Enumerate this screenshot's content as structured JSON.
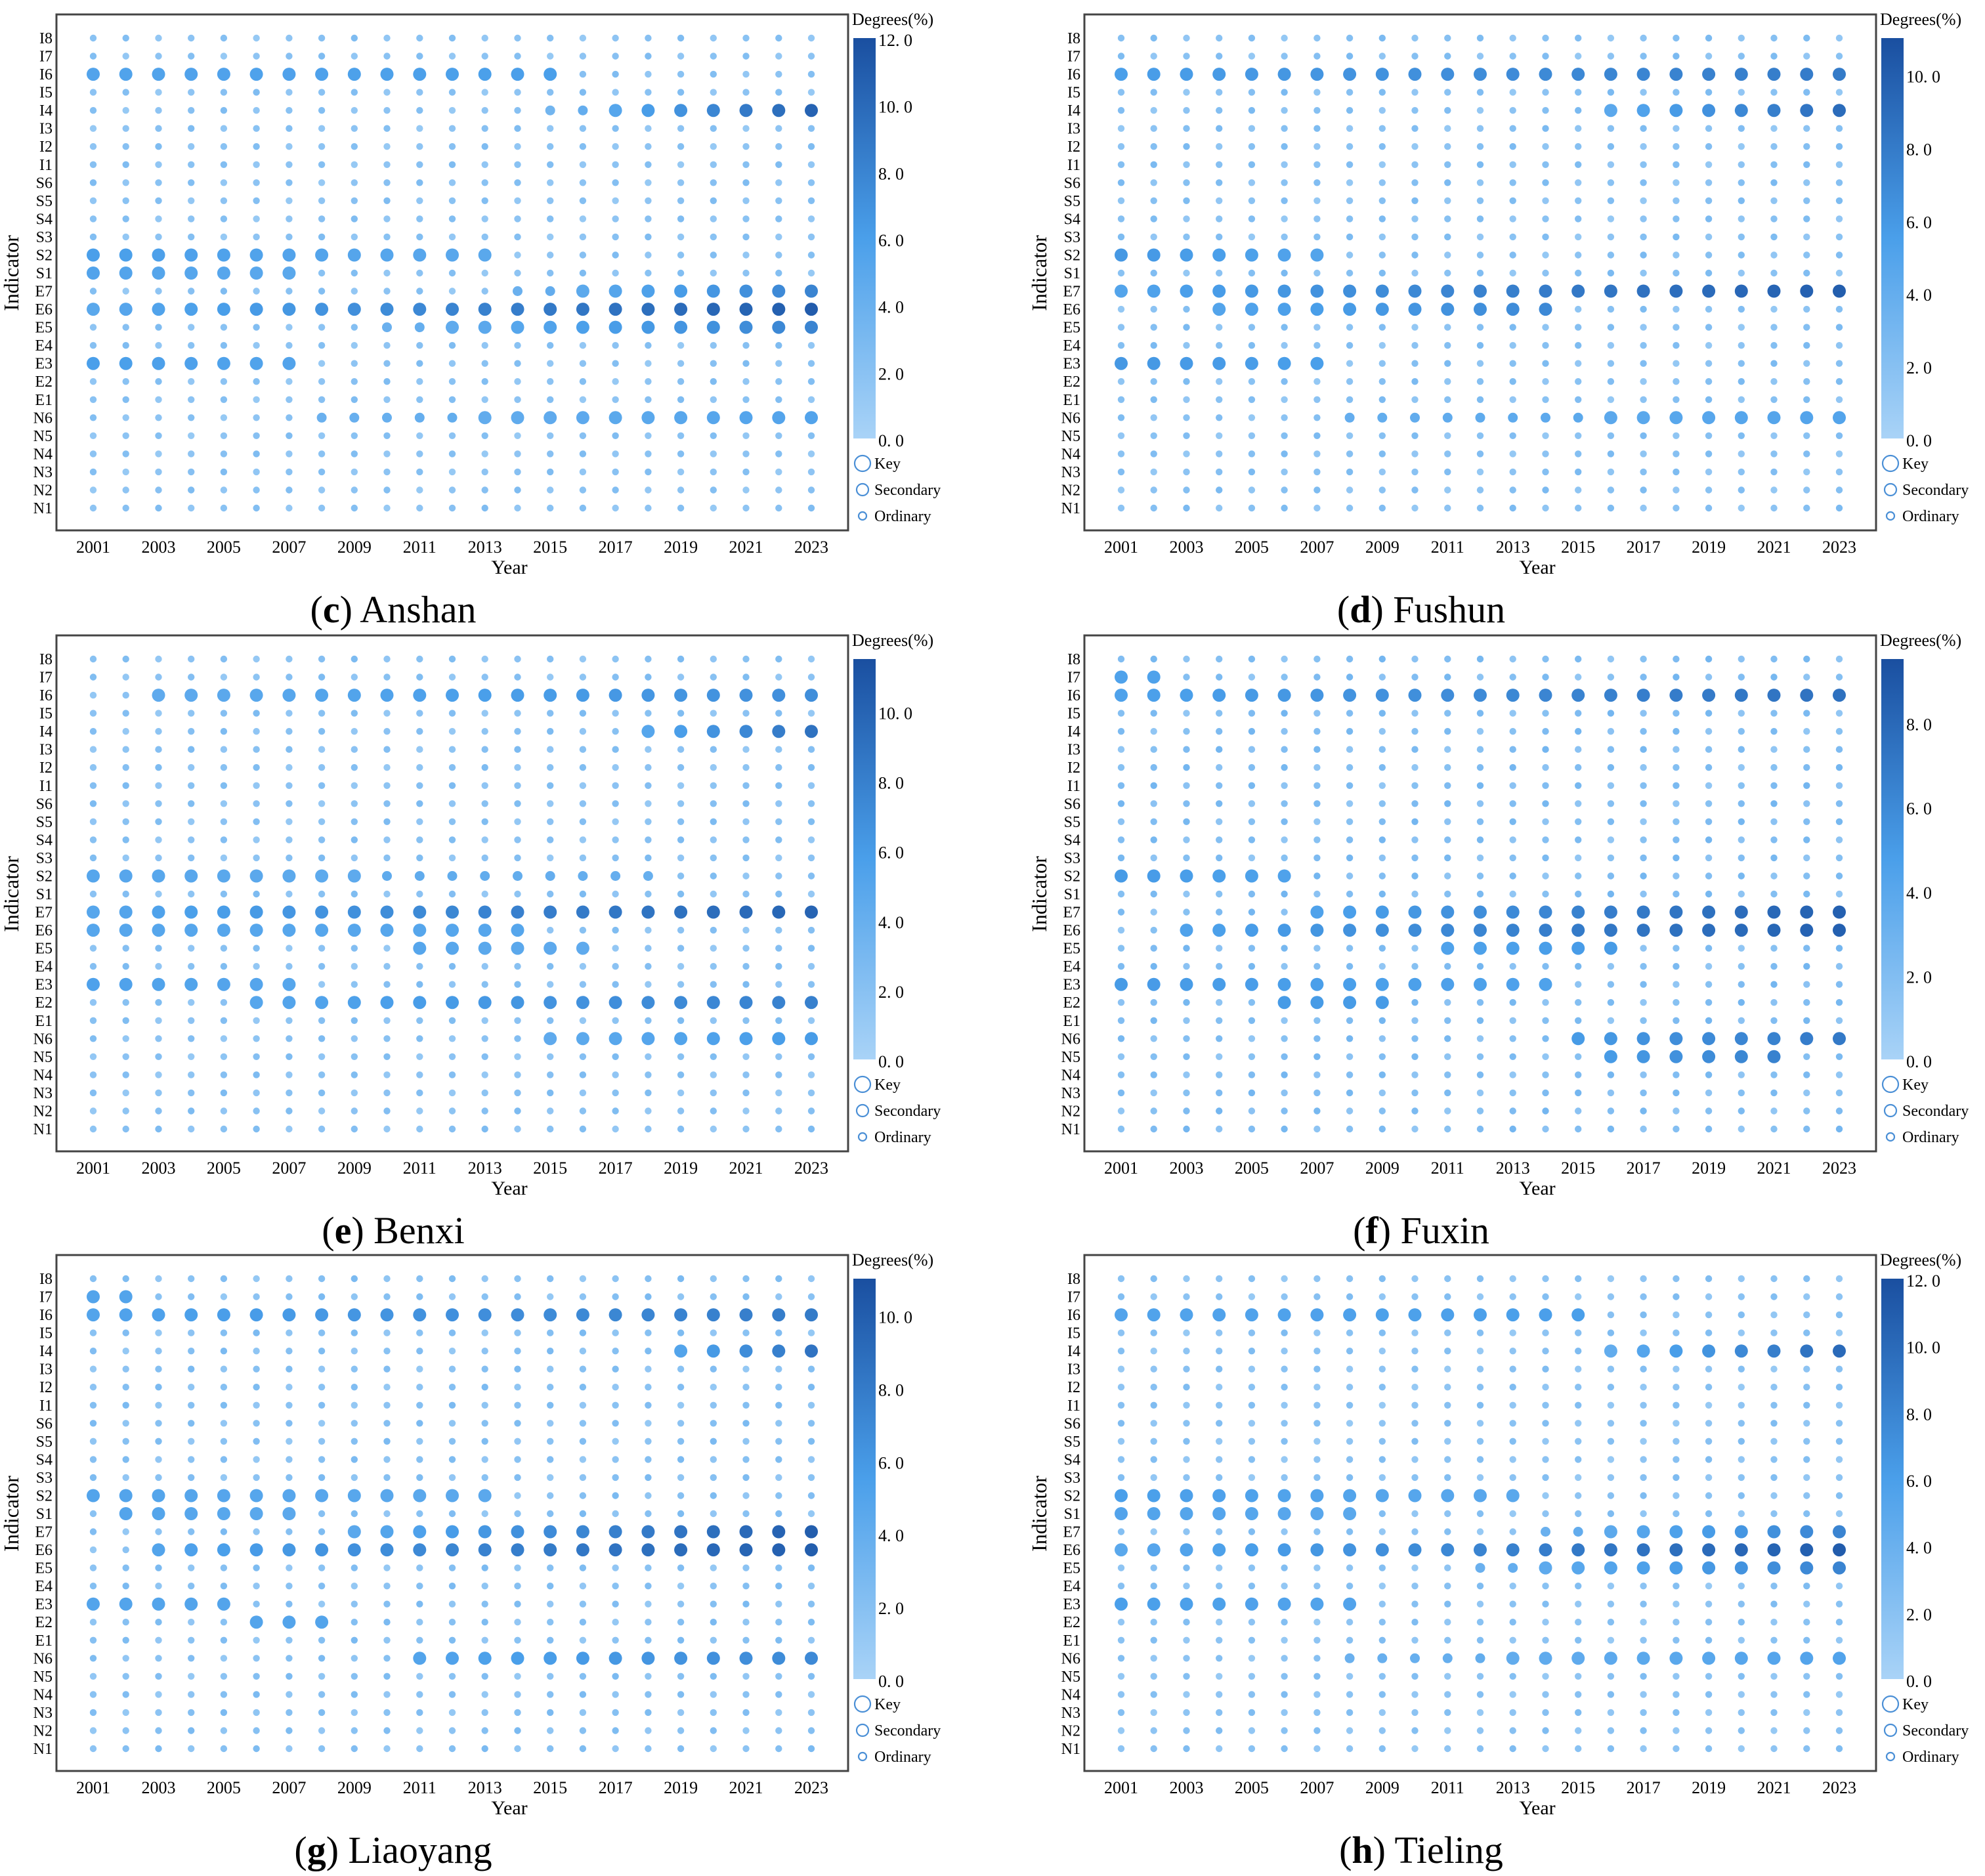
{
  "figure": {
    "panels": [
      {
        "letter": "c",
        "city": "Anshan",
        "cbar_max": "12. 0"
      },
      {
        "letter": "d",
        "city": "Fushun",
        "cbar_max": "10. 0"
      },
      {
        "letter": "e",
        "city": "Benxi",
        "cbar_max": "10. 0"
      },
      {
        "letter": "f",
        "city": "Fuxin",
        "cbar_max": "8. 0"
      },
      {
        "letter": "g",
        "city": "Liaoyang",
        "cbar_max": "10. 0"
      },
      {
        "letter": "h",
        "city": "Tieling",
        "cbar_max": "12. 0"
      }
    ]
  },
  "chart_data": [
    {
      "type": "scatter",
      "title": "(c) Anshan",
      "xlabel": "Year",
      "ylabel": "Indicator",
      "colorbar_label": "Degrees(%)",
      "colorbar_ticks": [
        "0. 0",
        "2. 0",
        "4. 0",
        "6. 0",
        "8. 0",
        "10. 0",
        "12. 0"
      ],
      "colorbar_range": [
        0,
        12
      ],
      "size_legend": [
        "Key",
        "Secondary",
        "Ordinary"
      ],
      "x_ticks": [
        "2001",
        "2003",
        "2005",
        "2007",
        "2009",
        "2011",
        "2013",
        "2015",
        "2017",
        "2019",
        "2021",
        "2023"
      ],
      "years": [
        2001,
        2023
      ],
      "indicators": [
        "N1",
        "N2",
        "N3",
        "N4",
        "N5",
        "N6",
        "E1",
        "E2",
        "E3",
        "E4",
        "E5",
        "E6",
        "E7",
        "S1",
        "S2",
        "S3",
        "S4",
        "S5",
        "S6",
        "I1",
        "I2",
        "I3",
        "I4",
        "I5",
        "I6",
        "I7",
        "I8"
      ],
      "highlights": [
        {
          "indicator": "I6",
          "from": 2001,
          "to": 2015,
          "start": 5.5,
          "end": 6
        },
        {
          "indicator": "I4",
          "from": 2015,
          "to": 2023,
          "start": 3.5,
          "end": 10.5
        },
        {
          "indicator": "S2",
          "from": 2001,
          "to": 2013,
          "start": 6,
          "end": 5
        },
        {
          "indicator": "S1",
          "from": 2001,
          "to": 2007,
          "start": 5.5,
          "end": 5
        },
        {
          "indicator": "E7",
          "from": 2014,
          "to": 2023,
          "start": 4,
          "end": 8
        },
        {
          "indicator": "E6",
          "from": 2001,
          "to": 2023,
          "start": 5,
          "end": 11
        },
        {
          "indicator": "E5",
          "from": 2010,
          "to": 2023,
          "start": 4,
          "end": 8
        },
        {
          "indicator": "E3",
          "from": 2001,
          "to": 2007,
          "start": 6,
          "end": 5.5
        },
        {
          "indicator": "N6",
          "from": 2008,
          "to": 2023,
          "start": 4,
          "end": 5.5
        }
      ]
    },
    {
      "type": "scatter",
      "title": "(d) Fushun",
      "xlabel": "Year",
      "ylabel": "Indicator",
      "colorbar_label": "Degrees(%)",
      "colorbar_ticks": [
        "0. 0",
        "2. 0",
        "4. 0",
        "6. 0",
        "8. 0",
        "10. 0"
      ],
      "colorbar_range": [
        0,
        11
      ],
      "size_legend": [
        "Key",
        "Secondary",
        "Ordinary"
      ],
      "x_ticks": [
        "2001",
        "2003",
        "2005",
        "2007",
        "2009",
        "2011",
        "2013",
        "2015",
        "2017",
        "2019",
        "2021",
        "2023"
      ],
      "years": [
        2001,
        2023
      ],
      "indicators": [
        "N1",
        "N2",
        "N3",
        "N4",
        "N5",
        "N6",
        "E1",
        "E2",
        "E3",
        "E4",
        "E5",
        "E6",
        "E7",
        "S1",
        "S2",
        "S3",
        "S4",
        "S5",
        "S6",
        "I1",
        "I2",
        "I3",
        "I4",
        "I5",
        "I6",
        "I7",
        "I8"
      ],
      "highlights": [
        {
          "indicator": "I6",
          "from": 2001,
          "to": 2023,
          "start": 5.5,
          "end": 8
        },
        {
          "indicator": "I4",
          "from": 2016,
          "to": 2023,
          "start": 4.5,
          "end": 9
        },
        {
          "indicator": "S2",
          "from": 2001,
          "to": 2007,
          "start": 6,
          "end": 5
        },
        {
          "indicator": "E7",
          "from": 2001,
          "to": 2023,
          "start": 5,
          "end": 10
        },
        {
          "indicator": "E6",
          "from": 2004,
          "to": 2014,
          "start": 5,
          "end": 7
        },
        {
          "indicator": "E3",
          "from": 2001,
          "to": 2007,
          "start": 6,
          "end": 5.5
        },
        {
          "indicator": "N6",
          "from": 2008,
          "to": 2023,
          "start": 4,
          "end": 5
        }
      ]
    },
    {
      "type": "scatter",
      "title": "(e) Benxi",
      "xlabel": "Year",
      "ylabel": "Indicator",
      "colorbar_label": "Degrees(%)",
      "colorbar_ticks": [
        "0. 0",
        "2. 0",
        "4. 0",
        "6. 0",
        "8. 0",
        "10. 0"
      ],
      "colorbar_range": [
        0,
        11.5
      ],
      "size_legend": [
        "Key",
        "Secondary",
        "Ordinary"
      ],
      "x_ticks": [
        "2001",
        "2003",
        "2005",
        "2007",
        "2009",
        "2011",
        "2013",
        "2015",
        "2017",
        "2019",
        "2021",
        "2023"
      ],
      "years": [
        2001,
        2023
      ],
      "indicators": [
        "N1",
        "N2",
        "N3",
        "N4",
        "N5",
        "N6",
        "E1",
        "E2",
        "E3",
        "E4",
        "E5",
        "E6",
        "E7",
        "S1",
        "S2",
        "S3",
        "S4",
        "S5",
        "S6",
        "I1",
        "I2",
        "I3",
        "I4",
        "I5",
        "I6",
        "I7",
        "I8"
      ],
      "highlights": [
        {
          "indicator": "I6",
          "from": 2003,
          "to": 2023,
          "start": 4.5,
          "end": 7
        },
        {
          "indicator": "I4",
          "from": 2018,
          "to": 2023,
          "start": 5,
          "end": 9
        },
        {
          "indicator": "S2",
          "from": 2001,
          "to": 2018,
          "start": 5,
          "end": 4
        },
        {
          "indicator": "E7",
          "from": 2001,
          "to": 2023,
          "start": 5,
          "end": 10
        },
        {
          "indicator": "E6",
          "from": 2001,
          "to": 2014,
          "start": 5,
          "end": 5
        },
        {
          "indicator": "E5",
          "from": 2011,
          "to": 2016,
          "start": 5,
          "end": 4.5
        },
        {
          "indicator": "E3",
          "from": 2001,
          "to": 2007,
          "start": 5.5,
          "end": 5
        },
        {
          "indicator": "E2",
          "from": 2006,
          "to": 2023,
          "start": 5,
          "end": 8
        },
        {
          "indicator": "N6",
          "from": 2015,
          "to": 2023,
          "start": 4.5,
          "end": 6
        }
      ]
    },
    {
      "type": "scatter",
      "title": "(f) Fuxin",
      "xlabel": "Year",
      "ylabel": "Indicator",
      "colorbar_label": "Degrees(%)",
      "colorbar_ticks": [
        "0. 0",
        "2. 0",
        "4. 0",
        "6. 0",
        "8. 0"
      ],
      "colorbar_range": [
        0,
        9.5
      ],
      "size_legend": [
        "Key",
        "Secondary",
        "Ordinary"
      ],
      "x_ticks": [
        "2001",
        "2003",
        "2005",
        "2007",
        "2009",
        "2011",
        "2013",
        "2015",
        "2017",
        "2019",
        "2021",
        "2023"
      ],
      "years": [
        2001,
        2023
      ],
      "indicators": [
        "N1",
        "N2",
        "N3",
        "N4",
        "N5",
        "N6",
        "E1",
        "E2",
        "E3",
        "E4",
        "E5",
        "E6",
        "E7",
        "S1",
        "S2",
        "S3",
        "S4",
        "S5",
        "S6",
        "I1",
        "I2",
        "I3",
        "I4",
        "I5",
        "I6",
        "I7",
        "I8"
      ],
      "highlights": [
        {
          "indicator": "I6",
          "from": 2001,
          "to": 2023,
          "start": 4.5,
          "end": 7.5
        },
        {
          "indicator": "I7",
          "from": 2001,
          "to": 2002,
          "start": 4.5,
          "end": 4.5
        },
        {
          "indicator": "S2",
          "from": 2001,
          "to": 2006,
          "start": 5,
          "end": 4.5
        },
        {
          "indicator": "E7",
          "from": 2007,
          "to": 2023,
          "start": 4.5,
          "end": 8.5
        },
        {
          "indicator": "E6",
          "from": 2003,
          "to": 2023,
          "start": 4.5,
          "end": 8.5
        },
        {
          "indicator": "E5",
          "from": 2011,
          "to": 2016,
          "start": 4.5,
          "end": 5
        },
        {
          "indicator": "E3",
          "from": 2001,
          "to": 2014,
          "start": 5,
          "end": 4.5
        },
        {
          "indicator": "E2",
          "from": 2006,
          "to": 2009,
          "start": 5,
          "end": 5
        },
        {
          "indicator": "N6",
          "from": 2015,
          "to": 2023,
          "start": 5,
          "end": 7
        },
        {
          "indicator": "N5",
          "from": 2016,
          "to": 2021,
          "start": 5,
          "end": 6.5
        }
      ]
    },
    {
      "type": "scatter",
      "title": "(g) Liaoyang",
      "xlabel": "Year",
      "ylabel": "Indicator",
      "colorbar_label": "Degrees(%)",
      "colorbar_ticks": [
        "0. 0",
        "2. 0",
        "4. 0",
        "6. 0",
        "8. 0",
        "10. 0"
      ],
      "colorbar_range": [
        0,
        11
      ],
      "size_legend": [
        "Key",
        "Secondary",
        "Ordinary"
      ],
      "x_ticks": [
        "2001",
        "2003",
        "2005",
        "2007",
        "2009",
        "2011",
        "2013",
        "2015",
        "2017",
        "2019",
        "2021",
        "2023"
      ],
      "years": [
        2001,
        2023
      ],
      "indicators": [
        "N1",
        "N2",
        "N3",
        "N4",
        "N5",
        "N6",
        "E1",
        "E2",
        "E3",
        "E4",
        "E5",
        "E6",
        "E7",
        "S1",
        "S2",
        "S3",
        "S4",
        "S5",
        "S6",
        "I1",
        "I2",
        "I3",
        "I4",
        "I5",
        "I6",
        "I7",
        "I8"
      ],
      "highlights": [
        {
          "indicator": "I6",
          "from": 2001,
          "to": 2023,
          "start": 5,
          "end": 8
        },
        {
          "indicator": "I7",
          "from": 2001,
          "to": 2002,
          "start": 5,
          "end": 5
        },
        {
          "indicator": "I4",
          "from": 2019,
          "to": 2023,
          "start": 5,
          "end": 8.5
        },
        {
          "indicator": "S2",
          "from": 2001,
          "to": 2013,
          "start": 5,
          "end": 4.5
        },
        {
          "indicator": "S1",
          "from": 2002,
          "to": 2007,
          "start": 5,
          "end": 4.5
        },
        {
          "indicator": "E7",
          "from": 2009,
          "to": 2023,
          "start": 4.5,
          "end": 10
        },
        {
          "indicator": "E6",
          "from": 2003,
          "to": 2023,
          "start": 5,
          "end": 10
        },
        {
          "indicator": "E3",
          "from": 2001,
          "to": 2005,
          "start": 5,
          "end": 5
        },
        {
          "indicator": "E2",
          "from": 2006,
          "to": 2008,
          "start": 5,
          "end": 5
        },
        {
          "indicator": "N6",
          "from": 2011,
          "to": 2023,
          "start": 5,
          "end": 7
        }
      ]
    },
    {
      "type": "scatter",
      "title": "(h) Tieling",
      "xlabel": "Year",
      "ylabel": "Indicator",
      "colorbar_label": "Degrees(%)",
      "colorbar_ticks": [
        "0. 0",
        "2. 0",
        "4. 0",
        "6. 0",
        "8. 0",
        "10. 0",
        "12. 0"
      ],
      "colorbar_range": [
        0,
        12
      ],
      "size_legend": [
        "Key",
        "Secondary",
        "Ordinary"
      ],
      "x_ticks": [
        "2001",
        "2003",
        "2005",
        "2007",
        "2009",
        "2011",
        "2013",
        "2015",
        "2017",
        "2019",
        "2021",
        "2023"
      ],
      "years": [
        2001,
        2023
      ],
      "indicators": [
        "N1",
        "N2",
        "N3",
        "N4",
        "N5",
        "N6",
        "E1",
        "E2",
        "E3",
        "E4",
        "E5",
        "E6",
        "E7",
        "S1",
        "S2",
        "S3",
        "S4",
        "S5",
        "S6",
        "I1",
        "I2",
        "I3",
        "I4",
        "I5",
        "I6",
        "I7",
        "I8"
      ],
      "highlights": [
        {
          "indicator": "I6",
          "from": 2001,
          "to": 2015,
          "start": 5.5,
          "end": 6
        },
        {
          "indicator": "I4",
          "from": 2016,
          "to": 2023,
          "start": 4.5,
          "end": 10
        },
        {
          "indicator": "S2",
          "from": 2001,
          "to": 2013,
          "start": 6,
          "end": 5
        },
        {
          "indicator": "S1",
          "from": 2001,
          "to": 2008,
          "start": 5.5,
          "end": 5
        },
        {
          "indicator": "E7",
          "from": 2014,
          "to": 2023,
          "start": 4,
          "end": 8
        },
        {
          "indicator": "E6",
          "from": 2001,
          "to": 2023,
          "start": 5,
          "end": 11
        },
        {
          "indicator": "E5",
          "from": 2012,
          "to": 2023,
          "start": 4,
          "end": 8
        },
        {
          "indicator": "E3",
          "from": 2001,
          "to": 2008,
          "start": 6,
          "end": 5.5
        },
        {
          "indicator": "N6",
          "from": 2008,
          "to": 2023,
          "start": 4,
          "end": 5.5
        }
      ]
    }
  ],
  "colors": {
    "scale_low": "#a9d3f7",
    "scale_mid": "#4a9fea",
    "scale_high": "#1a4fa0",
    "frame": "#444444"
  }
}
